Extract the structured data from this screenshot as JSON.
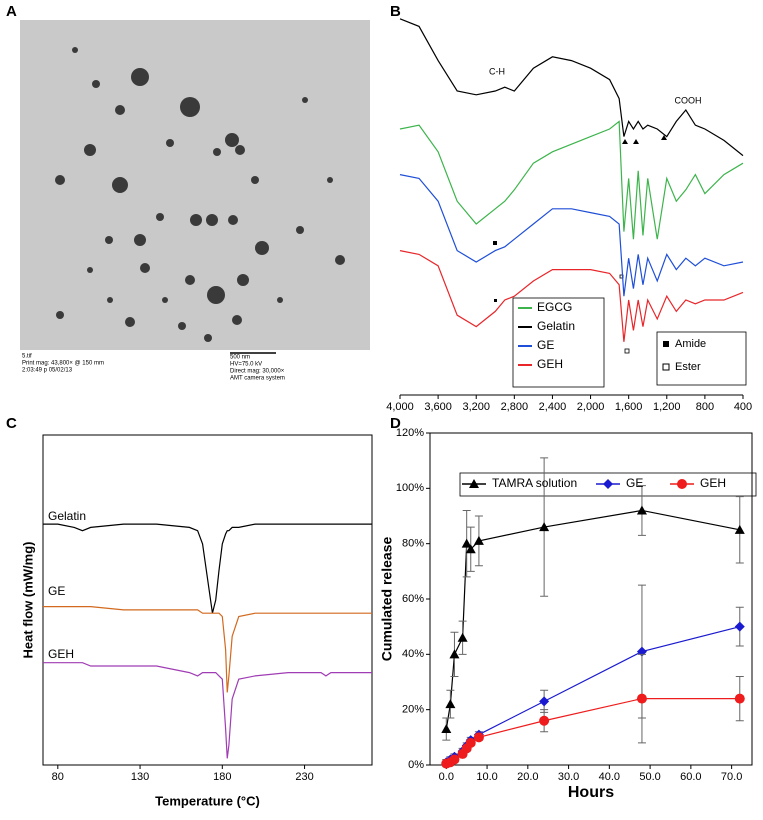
{
  "micrograph": {
    "label": "A",
    "filename": "5.tif",
    "print_mag": "Print mag: 43,800× @ 150 mm",
    "timestamp": "2:03:49 p 05/02/13",
    "scale_bar": "500 nm",
    "hv": "HV=75.0 kV",
    "direct_mag": "Direct mag: 30,000×",
    "camera": "AMT camera system"
  },
  "chart_data": [
    {
      "label": "B",
      "type": "line",
      "x": [
        4000,
        3800,
        3600,
        3400,
        3200,
        3000,
        2900,
        2800,
        2600,
        2400,
        2200,
        2000,
        1800,
        1700,
        1650,
        1600,
        1550,
        1500,
        1450,
        1400,
        1300,
        1200,
        1100,
        1000,
        900,
        800,
        600,
        400
      ],
      "xlim": [
        4000,
        400
      ],
      "ylim": [
        0,
        100
      ],
      "xticks": [
        {
          "value": 4000,
          "label": "4,000"
        },
        {
          "value": 3600,
          "label": "3,600"
        },
        {
          "value": 3200,
          "label": "3,200"
        },
        {
          "value": 2800,
          "label": "2,800"
        },
        {
          "value": 2400,
          "label": "2,400"
        },
        {
          "value": 2000,
          "label": "2,000"
        },
        {
          "value": 1600,
          "label": "1,600"
        },
        {
          "value": 1200,
          "label": "1,200"
        },
        800,
        400
      ],
      "series": [
        {
          "name": "EGCG",
          "color": "#3cb44b",
          "values": [
            70,
            71,
            64,
            51,
            45,
            49,
            51,
            54,
            61,
            64,
            66,
            68,
            70,
            72,
            43,
            57,
            41,
            59,
            42,
            57,
            41,
            57,
            51,
            54,
            58,
            53,
            58,
            61
          ]
        },
        {
          "name": "Gelatin",
          "color": "#000000",
          "values": [
            99,
            97,
            88,
            80,
            79,
            80,
            81,
            80,
            86,
            89,
            88,
            86,
            83,
            78,
            68,
            72,
            70,
            72,
            70,
            71,
            70,
            68,
            72,
            75,
            71,
            70,
            67,
            63
          ]
        },
        {
          "name": "GE",
          "color": "#1f4fd8",
          "values": [
            58,
            57,
            51,
            38,
            35,
            38,
            39,
            41,
            45,
            49,
            49,
            48,
            47,
            45,
            26,
            36,
            28,
            37,
            29,
            36,
            30,
            37,
            33,
            36,
            34,
            36,
            34,
            35
          ]
        },
        {
          "name": "GEH",
          "color": "#e8262a",
          "values": [
            38,
            37,
            34,
            21,
            18,
            22,
            25,
            26,
            30,
            33,
            33,
            33,
            32,
            29,
            14,
            25,
            17,
            25,
            18,
            25,
            20,
            26,
            22,
            25,
            24,
            25,
            25,
            27
          ]
        }
      ],
      "annotations": [
        "C-H",
        "COOH"
      ],
      "marker_legend": [
        "Amide",
        "Ester"
      ]
    },
    {
      "label": "C",
      "type": "line",
      "x": [
        71,
        80,
        90,
        95,
        100,
        120,
        140,
        160,
        165,
        168,
        172,
        174,
        176,
        178,
        180,
        182,
        183,
        184,
        186,
        190,
        200,
        220,
        240,
        243,
        246,
        260,
        271
      ],
      "xlim": [
        71,
        271
      ],
      "ylim": [
        0,
        100
      ],
      "xticks": [
        80,
        130,
        180,
        230
      ],
      "xlabel": "Temperature (°C)",
      "ylabel": "Heat flow (mW/mg)",
      "series": [
        {
          "name": "Gelatin",
          "color": "#000000",
          "values": [
            73,
            73,
            72,
            71,
            72,
            73,
            73,
            72,
            71,
            67,
            53,
            46,
            50,
            59,
            67,
            70,
            71,
            71,
            72,
            72,
            73,
            73,
            73,
            73,
            73,
            73,
            73
          ]
        },
        {
          "name": "GE",
          "color": "#d2691e",
          "values": [
            48,
            48,
            48,
            48,
            48,
            47,
            47,
            47,
            47,
            46,
            46,
            46,
            46,
            46,
            45,
            35,
            22,
            27,
            39,
            45,
            46,
            46,
            46,
            46,
            46,
            46,
            46
          ]
        },
        {
          "name": "GEH",
          "color": "#a03cb4",
          "values": [
            31,
            31,
            31,
            31,
            30,
            30,
            30,
            28,
            27,
            28,
            28,
            28,
            28,
            27,
            26,
            11,
            2,
            6,
            20,
            26,
            27,
            28,
            28,
            27,
            28,
            28,
            28
          ]
        }
      ]
    },
    {
      "label": "D",
      "type": "line",
      "x": [
        0,
        1,
        2,
        4,
        5,
        6,
        8,
        24,
        48,
        72
      ],
      "xlim": [
        -4,
        75
      ],
      "ylim": [
        0,
        120
      ],
      "xticks": [
        {
          "value": 0,
          "label": "0.0"
        },
        {
          "value": 10,
          "label": "10.0"
        },
        {
          "value": 20,
          "label": "20.0"
        },
        {
          "value": 30,
          "label": "30.0"
        },
        {
          "value": 40,
          "label": "40.0"
        },
        {
          "value": 50,
          "label": "50.0"
        },
        {
          "value": 60,
          "label": "60.0"
        },
        {
          "value": 70,
          "label": "70.0"
        }
      ],
      "yticks": [
        {
          "value": 0,
          "label": "0%"
        },
        {
          "value": 20,
          "label": "20%"
        },
        {
          "value": 40,
          "label": "40%"
        },
        {
          "value": 60,
          "label": "60%"
        },
        {
          "value": 80,
          "label": "80%"
        },
        {
          "value": 100,
          "label": "100%"
        },
        {
          "value": 120,
          "label": "120%"
        }
      ],
      "xlabel": "Hours",
      "ylabel": "Cumulated release",
      "series": [
        {
          "name": "TAMRA solution",
          "color": "#000000",
          "marker": "triangle",
          "values": [
            13,
            22,
            40,
            46,
            80,
            78,
            81,
            86,
            92,
            85
          ],
          "errors": [
            4,
            5,
            8,
            6,
            12,
            8,
            9,
            25,
            9,
            12
          ]
        },
        {
          "name": "GE",
          "color": "#1a1ad0",
          "marker": "diamond",
          "values": [
            1,
            2,
            3,
            5,
            7,
            9,
            11,
            23,
            41,
            50
          ],
          "errors": [
            1,
            1,
            1,
            1,
            1,
            1,
            1,
            4,
            24,
            7
          ]
        },
        {
          "name": "GEH",
          "color": "#ee1c1c",
          "marker": "circle",
          "values": [
            0.5,
            1,
            2,
            4,
            6,
            8,
            10,
            16,
            24,
            24
          ],
          "errors": [
            1,
            1,
            1,
            1,
            1,
            1,
            1,
            4,
            16,
            8
          ]
        }
      ]
    }
  ]
}
